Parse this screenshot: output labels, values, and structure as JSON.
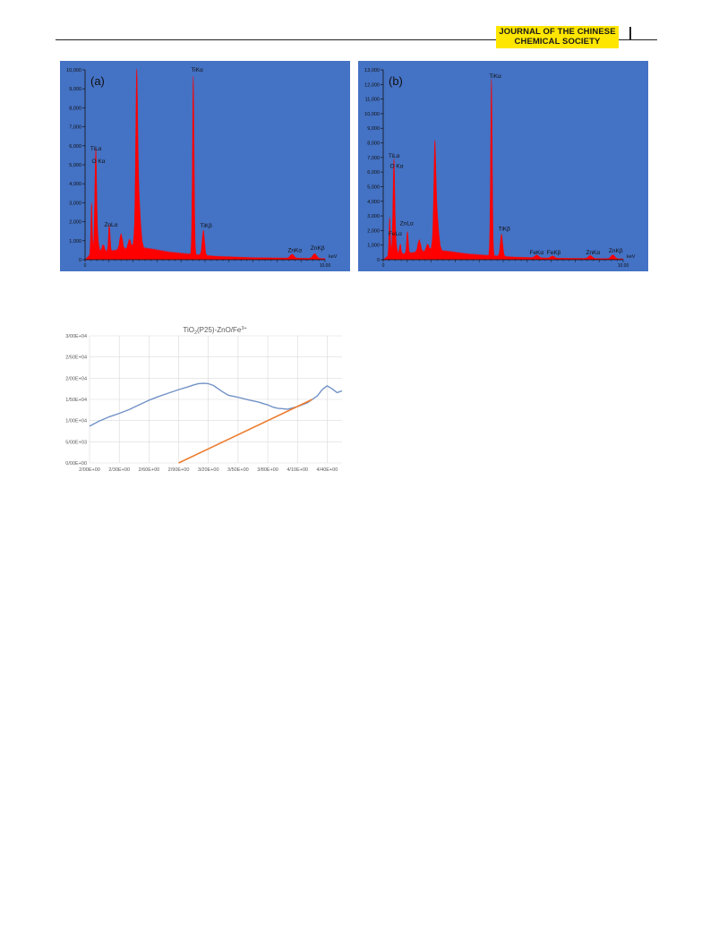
{
  "header": {
    "journal_line1": "JOURNAL OF THE CHINESE",
    "journal_line2": "CHEMICAL SOCIETY"
  },
  "colors": {
    "panel_bg": "#4472c4",
    "spectrum": "#ff0000",
    "band_curve": "#7292c7",
    "tangent_line": "#ed7d31",
    "badge": "#ffe600"
  },
  "chart_data": [
    {
      "type": "area",
      "panel_label": "(a)",
      "xlabel": "keV",
      "xlim": [
        0,
        10
      ],
      "ylim": [
        0,
        10000
      ],
      "x_tick_labels": [
        "0",
        "10.00"
      ],
      "y_tick_values": [
        0,
        1000,
        2000,
        3000,
        4000,
        5000,
        6000,
        7000,
        8000,
        9000,
        10000
      ],
      "y_tick_labels": [
        "0",
        "1,000",
        "2,000",
        "3,000",
        "4,000",
        "5,000",
        "6,000",
        "7,000",
        "8,000",
        "9,000",
        "10,000"
      ],
      "peaks": [
        {
          "x": 0.27,
          "y": 2700,
          "w": 0.03
        },
        {
          "x": 0.4,
          "y": 1100,
          "w": 0.035
        },
        {
          "x": 0.45,
          "y": 4900,
          "w": 0.035
        },
        {
          "x": 0.52,
          "y": 800,
          "w": 0.05
        },
        {
          "x": 0.75,
          "y": 400,
          "w": 0.06
        },
        {
          "x": 1.01,
          "y": 1400,
          "w": 0.035
        },
        {
          "x": 1.5,
          "y": 800,
          "w": 0.06
        },
        {
          "x": 1.85,
          "y": 500,
          "w": 0.06
        },
        {
          "x": 2.15,
          "y": 6600,
          "w": 0.04
        },
        {
          "x": 2.2,
          "y": 3300,
          "w": 0.09
        },
        {
          "x": 4.51,
          "y": 9400,
          "w": 0.035
        },
        {
          "x": 4.93,
          "y": 1300,
          "w": 0.05
        },
        {
          "x": 8.63,
          "y": 200,
          "w": 0.08
        },
        {
          "x": 9.57,
          "y": 250,
          "w": 0.08
        }
      ],
      "background": [
        {
          "x": 0,
          "y": 0
        },
        {
          "x": 0.2,
          "y": 250
        },
        {
          "x": 0.6,
          "y": 350
        },
        {
          "x": 1.5,
          "y": 550
        },
        {
          "x": 2.6,
          "y": 600
        },
        {
          "x": 3.5,
          "y": 400
        },
        {
          "x": 4.3,
          "y": 300
        },
        {
          "x": 5.5,
          "y": 180
        },
        {
          "x": 7.0,
          "y": 110
        },
        {
          "x": 9.0,
          "y": 80
        },
        {
          "x": 10.0,
          "y": 60
        }
      ],
      "annotations": [
        {
          "text": "TiLα",
          "x": 0.22,
          "y": 5750
        },
        {
          "text": "O Kα",
          "x": 0.28,
          "y": 5100
        },
        {
          "text": "ZnLα",
          "x": 0.8,
          "y": 1750
        },
        {
          "text": "TiKα",
          "x": 4.42,
          "y": 9900
        },
        {
          "text": "TiKβ",
          "x": 4.8,
          "y": 1700
        },
        {
          "text": "ZnKα",
          "x": 8.45,
          "y": 400
        },
        {
          "text": "ZnKβ",
          "x": 9.4,
          "y": 520
        }
      ]
    },
    {
      "type": "area",
      "panel_label": "(b)",
      "xlabel": "keV",
      "xlim": [
        0,
        10
      ],
      "ylim": [
        0,
        13000
      ],
      "x_tick_labels": [
        "0",
        "10.00"
      ],
      "y_tick_values": [
        0,
        1000,
        2000,
        3000,
        4000,
        5000,
        6000,
        7000,
        8000,
        9000,
        10000,
        11000,
        12000,
        13000
      ],
      "y_tick_labels": [
        "0",
        "1,000",
        "2,000",
        "3,000",
        "4,000",
        "5,000",
        "6,000",
        "7,000",
        "8,000",
        "9,000",
        "10,000",
        "11,000",
        "12,000",
        "13,000"
      ],
      "peaks": [
        {
          "x": 0.27,
          "y": 2600,
          "w": 0.03
        },
        {
          "x": 0.4,
          "y": 1100,
          "w": 0.035
        },
        {
          "x": 0.45,
          "y": 5900,
          "w": 0.035
        },
        {
          "x": 0.52,
          "y": 800,
          "w": 0.05
        },
        {
          "x": 0.71,
          "y": 700,
          "w": 0.035
        },
        {
          "x": 1.01,
          "y": 1500,
          "w": 0.035
        },
        {
          "x": 1.5,
          "y": 800,
          "w": 0.06
        },
        {
          "x": 1.85,
          "y": 500,
          "w": 0.06
        },
        {
          "x": 2.15,
          "y": 4900,
          "w": 0.04
        },
        {
          "x": 2.2,
          "y": 3100,
          "w": 0.09
        },
        {
          "x": 4.51,
          "y": 12100,
          "w": 0.035
        },
        {
          "x": 4.93,
          "y": 1500,
          "w": 0.05
        },
        {
          "x": 6.4,
          "y": 180,
          "w": 0.08
        },
        {
          "x": 7.06,
          "y": 150,
          "w": 0.08
        },
        {
          "x": 8.63,
          "y": 200,
          "w": 0.08
        },
        {
          "x": 9.57,
          "y": 260,
          "w": 0.08
        }
      ],
      "background": [
        {
          "x": 0,
          "y": 0
        },
        {
          "x": 0.2,
          "y": 250
        },
        {
          "x": 0.6,
          "y": 350
        },
        {
          "x": 1.5,
          "y": 550
        },
        {
          "x": 2.6,
          "y": 600
        },
        {
          "x": 3.5,
          "y": 400
        },
        {
          "x": 4.3,
          "y": 300
        },
        {
          "x": 5.5,
          "y": 180
        },
        {
          "x": 7.0,
          "y": 110
        },
        {
          "x": 9.0,
          "y": 80
        },
        {
          "x": 10.0,
          "y": 60
        }
      ],
      "annotations": [
        {
          "text": "TiLα",
          "x": 0.22,
          "y": 7000
        },
        {
          "text": "O Kα",
          "x": 0.28,
          "y": 6300
        },
        {
          "text": "ZnLα",
          "x": 0.7,
          "y": 2350
        },
        {
          "text": "FeLα",
          "x": 0.22,
          "y": 1650
        },
        {
          "text": "TiKα",
          "x": 4.42,
          "y": 12450
        },
        {
          "text": "TiKβ",
          "x": 4.8,
          "y": 2000
        },
        {
          "text": "FeKα",
          "x": 6.1,
          "y": 380
        },
        {
          "text": "FeKβ",
          "x": 6.82,
          "y": 380
        },
        {
          "text": "ZnKα",
          "x": 8.45,
          "y": 380
        },
        {
          "text": "ZnKβ",
          "x": 9.4,
          "y": 480
        }
      ]
    },
    {
      "type": "line",
      "title_base": "TiO",
      "title_sub": "2",
      "title_mid": "(P25)-ZnO/Fe",
      "title_sup": "3+",
      "xlim": [
        2.0,
        4.55
      ],
      "ylim": [
        0,
        30000
      ],
      "x_tick_values": [
        2.0,
        2.3,
        2.6,
        2.9,
        3.2,
        3.5,
        3.8,
        4.1,
        4.4
      ],
      "x_tick_labels": [
        "2/00E+00",
        "2/30E+00",
        "2/60E+00",
        "2/90E+00",
        "3/20E+00",
        "3/50E+00",
        "3/80E+00",
        "4/10E+00",
        "4/40E+00"
      ],
      "y_tick_values": [
        0,
        5000,
        10000,
        15000,
        20000,
        25000,
        30000
      ],
      "y_tick_labels": [
        "0/00E+00",
        "5/00E+03",
        "1/00E+04",
        "1/50E+04",
        "2/00E+04",
        "2/50E+04",
        "3/00E+04"
      ],
      "grid": true,
      "series": [
        {
          "role": "curve",
          "x": [
            2.0,
            2.1,
            2.2,
            2.3,
            2.4,
            2.5,
            2.6,
            2.7,
            2.8,
            2.9,
            3.0,
            3.05,
            3.1,
            3.15,
            3.2,
            3.25,
            3.3,
            3.35,
            3.4,
            3.5,
            3.6,
            3.7,
            3.8,
            3.85,
            3.9,
            4.0,
            4.1,
            4.2,
            4.3,
            4.35,
            4.4,
            4.45,
            4.5,
            4.55
          ],
          "y": [
            8700,
            9900,
            10900,
            11700,
            12600,
            13700,
            14800,
            15700,
            16500,
            17300,
            18000,
            18400,
            18700,
            18800,
            18700,
            18300,
            17500,
            16700,
            16000,
            15500,
            14900,
            14400,
            13700,
            13200,
            12900,
            12700,
            13300,
            14200,
            15800,
            17300,
            18200,
            17500,
            16600,
            17000
          ]
        },
        {
          "role": "tangent",
          "x": [
            2.9,
            4.25
          ],
          "y": [
            0,
            15000
          ]
        }
      ]
    }
  ]
}
